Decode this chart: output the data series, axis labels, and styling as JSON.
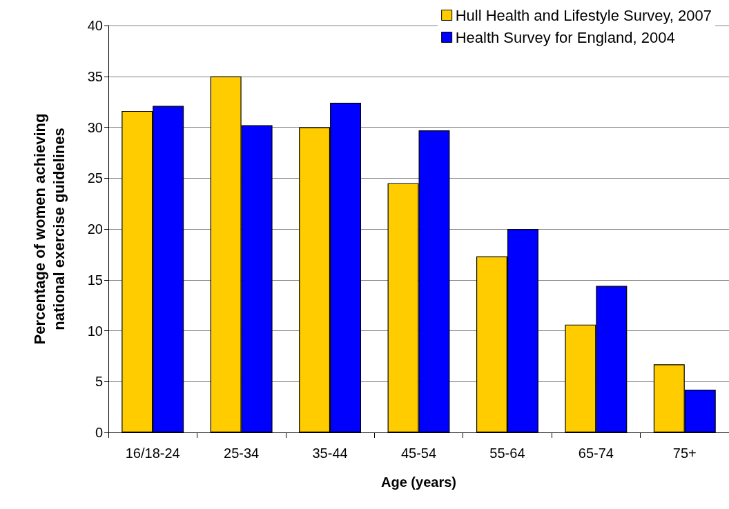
{
  "chart_data": {
    "type": "bar",
    "xlabel": "Age (years)",
    "ylabel": "Percentage of women achieving\nnational exercise guidelines",
    "categories": [
      "16/18-24",
      "25-34",
      "35-44",
      "45-54",
      "55-64",
      "65-74",
      "75+"
    ],
    "series": [
      {
        "name": "Hull Health and Lifestyle Survey, 2007",
        "color": "#ffcc00",
        "values": [
          31.6,
          35.0,
          30.0,
          24.5,
          17.3,
          10.6,
          6.7
        ]
      },
      {
        "name": "Health Survey for England, 2004",
        "color": "#0000ff",
        "values": [
          32.1,
          30.2,
          32.4,
          29.7,
          20.0,
          14.4,
          4.2
        ]
      }
    ],
    "ylim": [
      0,
      40
    ],
    "yticks": [
      0,
      5,
      10,
      15,
      20,
      25,
      30,
      35,
      40
    ],
    "grid": "y",
    "legend": "top right"
  }
}
